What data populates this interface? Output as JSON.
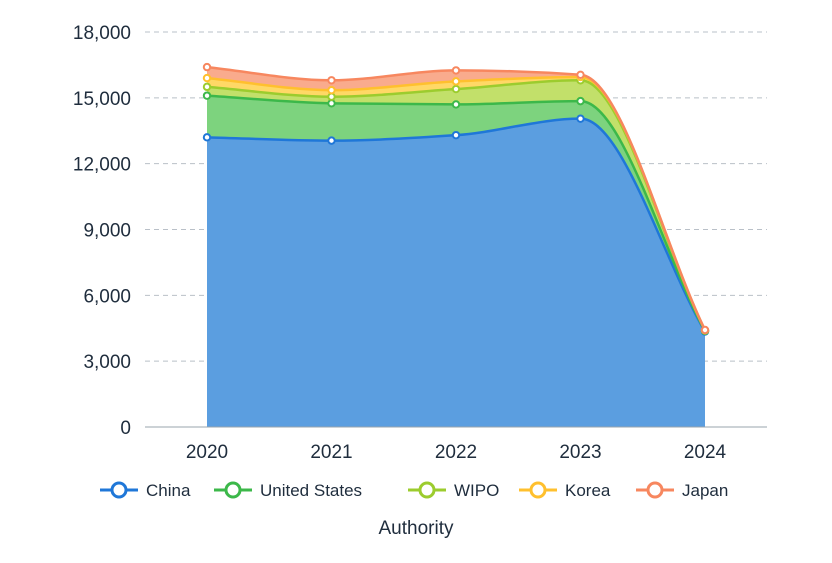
{
  "chart_data": {
    "type": "area",
    "stacked": true,
    "categories": [
      "2020",
      "2021",
      "2022",
      "2023",
      "2024"
    ],
    "y_ticks": [
      "0",
      "3,000",
      "6,000",
      "9,000",
      "12,000",
      "15,000",
      "18,000"
    ],
    "ylim": [
      0,
      18000
    ],
    "xlabel": "Authority",
    "ylabel": "",
    "grid": true,
    "legend_position": "bottom",
    "series": [
      {
        "name": "China",
        "color": "#1f77d8",
        "fill": "#5b9ee0",
        "values": [
          13200,
          13050,
          13300,
          14050,
          4350
        ]
      },
      {
        "name": "United States",
        "color": "#3cb84a",
        "fill": "#7dd37e",
        "values": [
          1900,
          1700,
          1400,
          800,
          30
        ]
      },
      {
        "name": "WIPO",
        "color": "#9ccc2e",
        "fill": "#c2e06a",
        "values": [
          400,
          300,
          700,
          950,
          20
        ]
      },
      {
        "name": "Korea",
        "color": "#ffc02e",
        "fill": "#ffd866",
        "values": [
          400,
          300,
          350,
          150,
          10
        ]
      },
      {
        "name": "Japan",
        "color": "#f7875f",
        "fill": "#f9ab8d",
        "values": [
          500,
          450,
          500,
          100,
          10
        ]
      }
    ]
  }
}
